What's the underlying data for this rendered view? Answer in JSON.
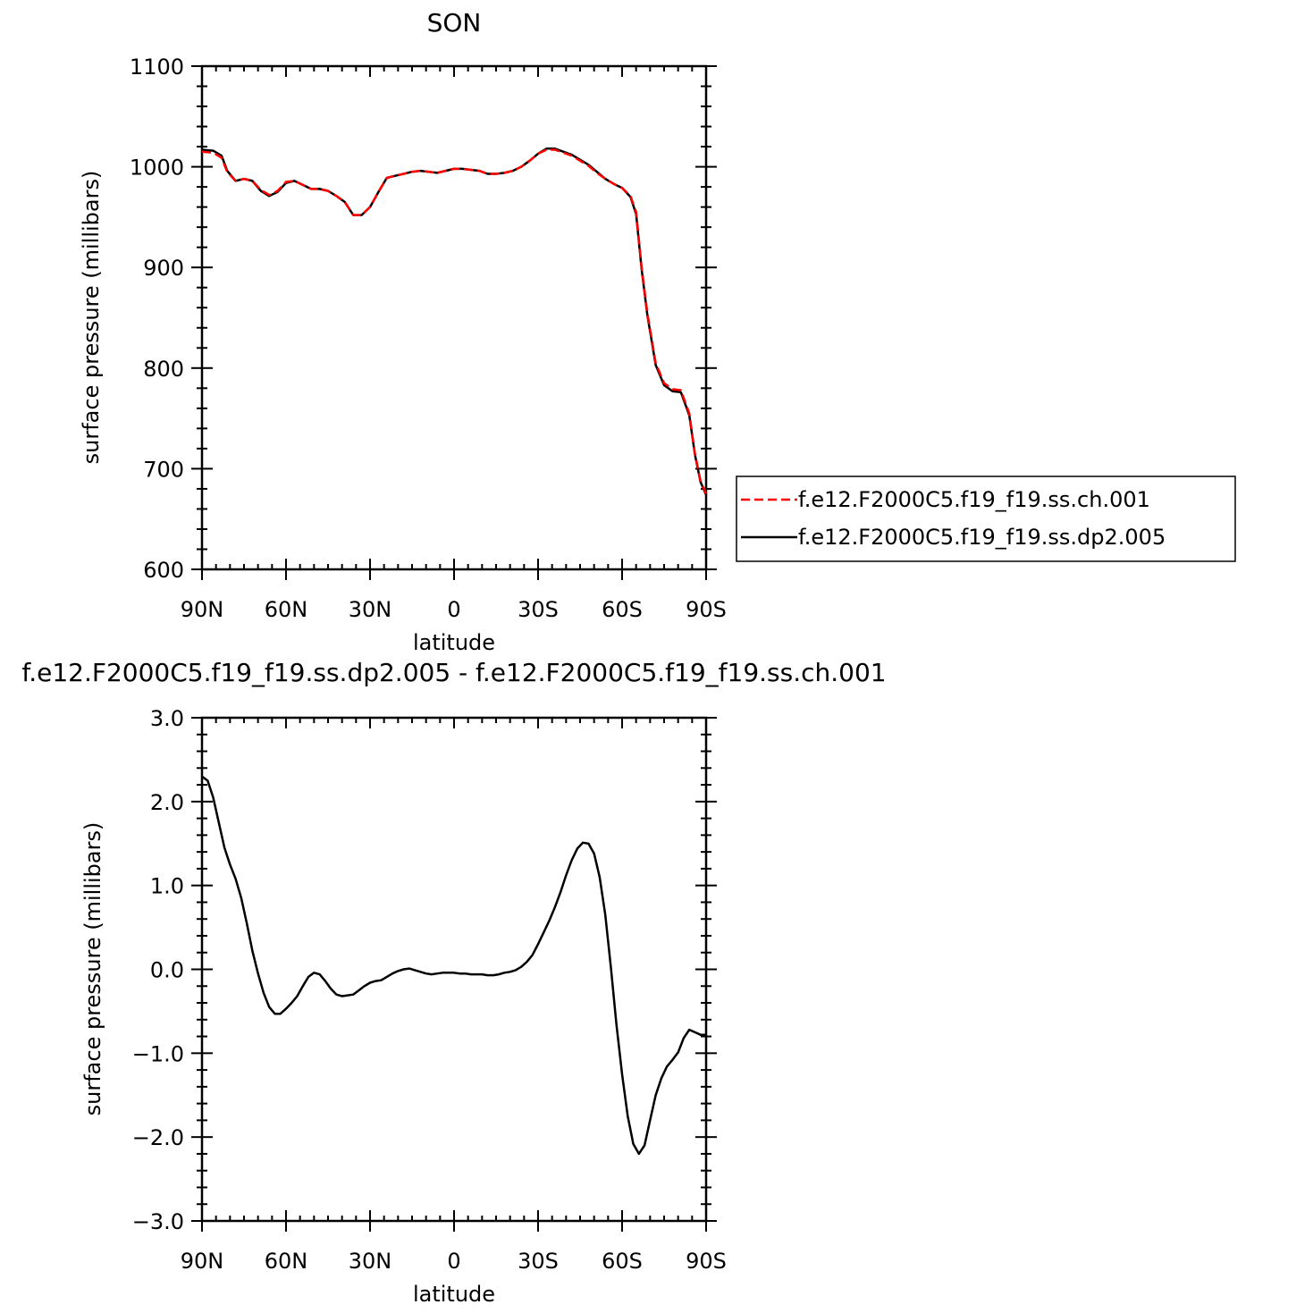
{
  "chart_data": [
    {
      "type": "line",
      "title": "SON",
      "xlabel": "latitude",
      "ylabel": "surface pressure (millibars)",
      "xlim": [
        -90,
        90
      ],
      "ylim": [
        600,
        1100
      ],
      "x_direction": "north-to-south",
      "xtick_labels": [
        "90N",
        "60N",
        "30N",
        "0",
        "30S",
        "60S",
        "90S"
      ],
      "ytick_labels": [
        "600",
        "700",
        "800",
        "900",
        "1000",
        "1100"
      ],
      "legend": {
        "placement": "right"
      },
      "series": [
        {
          "name": "f.e12.F2000C5.f19_f19.ss.ch.001",
          "color": "#ff0000",
          "dash": "dashed",
          "x": [
            90,
            86,
            83,
            81,
            78,
            75,
            72,
            69,
            66,
            63,
            60,
            57,
            54,
            51,
            48,
            45,
            42,
            39,
            36,
            33,
            30,
            27,
            24,
            21,
            18,
            15,
            12,
            9,
            6,
            3,
            0,
            -3,
            -6,
            -9,
            -12,
            -15,
            -18,
            -21,
            -24,
            -27,
            -30,
            -33,
            -36,
            -39,
            -42,
            -45,
            -48,
            -51,
            -54,
            -57,
            -60,
            -63,
            -65,
            -67,
            -69,
            -72,
            -75,
            -78,
            -81,
            -84,
            -86,
            -88,
            -90
          ],
          "y": [
            1015,
            1014,
            1009,
            995,
            986,
            988,
            986,
            977,
            972,
            976,
            985,
            986,
            982,
            978,
            978,
            976,
            971,
            965,
            952,
            952,
            960,
            975,
            989,
            991,
            993,
            995,
            996,
            995,
            994,
            996,
            998,
            998,
            997,
            996,
            993,
            993,
            994,
            996,
            1000,
            1006,
            1013,
            1017,
            1017,
            1014,
            1011,
            1006,
            1001,
            994,
            988,
            983,
            979,
            971,
            955,
            900,
            855,
            805,
            785,
            779,
            778,
            755,
            715,
            688,
            675
          ]
        },
        {
          "name": "f.e12.F2000C5.f19_f19.ss.dp2.005",
          "color": "#000000",
          "dash": "solid",
          "x": [
            90,
            86,
            83,
            81,
            78,
            75,
            72,
            69,
            66,
            63,
            60,
            57,
            54,
            51,
            48,
            45,
            42,
            39,
            36,
            33,
            30,
            27,
            24,
            21,
            18,
            15,
            12,
            9,
            6,
            3,
            0,
            -3,
            -6,
            -9,
            -12,
            -15,
            -18,
            -21,
            -24,
            -27,
            -30,
            -33,
            -36,
            -39,
            -42,
            -45,
            -48,
            -51,
            -54,
            -57,
            -60,
            -63,
            -65,
            -67,
            -69,
            -72,
            -75,
            -78,
            -81,
            -84,
            -86,
            -88,
            -90
          ],
          "y": [
            1017,
            1016,
            1011,
            996,
            986,
            988,
            986,
            976,
            971,
            975,
            984,
            986,
            982,
            978,
            978,
            976,
            971,
            965,
            952,
            952,
            960,
            975,
            989,
            991,
            993,
            995,
            996,
            995,
            994,
            996,
            998,
            998,
            997,
            996,
            993,
            993,
            994,
            996,
            1000,
            1006,
            1013,
            1018,
            1018,
            1015,
            1012,
            1007,
            1002,
            995,
            988,
            983,
            979,
            970,
            953,
            898,
            853,
            803,
            783,
            777,
            776,
            753,
            714,
            687,
            674
          ]
        }
      ]
    },
    {
      "type": "line",
      "title": "f.e12.F2000C5.f19_f19.ss.dp2.005 - f.e12.F2000C5.f19_f19.ss.ch.001",
      "xlabel": "latitude",
      "ylabel": "surface pressure (millibars)",
      "xlim": [
        -90,
        90
      ],
      "ylim": [
        -3.0,
        3.0
      ],
      "x_direction": "north-to-south",
      "xtick_labels": [
        "90N",
        "60N",
        "30N",
        "0",
        "30S",
        "60S",
        "90S"
      ],
      "ytick_labels": [
        "−3.0",
        "−2.0",
        "−1.0",
        "0.0",
        "1.0",
        "2.0",
        "3.0"
      ],
      "series": [
        {
          "color": "#000000",
          "dash": "solid",
          "x": [
            90,
            88,
            86,
            84,
            82,
            80,
            78,
            76,
            74,
            72,
            70,
            68,
            66,
            64,
            62,
            60,
            58,
            56,
            54,
            52,
            50,
            48,
            46,
            44,
            42,
            40,
            38,
            36,
            34,
            32,
            30,
            28,
            26,
            24,
            22,
            20,
            18,
            16,
            14,
            12,
            10,
            8,
            6,
            4,
            2,
            0,
            -2,
            -4,
            -6,
            -8,
            -10,
            -12,
            -14,
            -16,
            -18,
            -20,
            -22,
            -24,
            -26,
            -28,
            -30,
            -32,
            -34,
            -36,
            -38,
            -40,
            -42,
            -44,
            -46,
            -48,
            -50,
            -52,
            -54,
            -56,
            -58,
            -60,
            -62,
            -64,
            -66,
            -68,
            -70,
            -72,
            -74,
            -76,
            -78,
            -80,
            -82,
            -84,
            -86,
            -88,
            -90
          ],
          "y": [
            2.3,
            2.25,
            2.05,
            1.75,
            1.45,
            1.25,
            1.08,
            0.85,
            0.55,
            0.22,
            -0.05,
            -0.28,
            -0.45,
            -0.53,
            -0.53,
            -0.47,
            -0.4,
            -0.32,
            -0.2,
            -0.09,
            -0.04,
            -0.06,
            -0.14,
            -0.23,
            -0.3,
            -0.32,
            -0.31,
            -0.3,
            -0.25,
            -0.2,
            -0.16,
            -0.14,
            -0.13,
            -0.09,
            -0.05,
            -0.02,
            0.0,
            0.01,
            -0.01,
            -0.03,
            -0.05,
            -0.06,
            -0.05,
            -0.04,
            -0.04,
            -0.04,
            -0.05,
            -0.05,
            -0.06,
            -0.06,
            -0.06,
            -0.07,
            -0.07,
            -0.06,
            -0.04,
            -0.03,
            -0.01,
            0.03,
            0.09,
            0.17,
            0.3,
            0.44,
            0.58,
            0.74,
            0.92,
            1.12,
            1.3,
            1.44,
            1.51,
            1.5,
            1.38,
            1.1,
            0.65,
            0.02,
            -0.66,
            -1.25,
            -1.75,
            -2.08,
            -2.2,
            -2.1,
            -1.8,
            -1.5,
            -1.3,
            -1.16,
            -1.08,
            -0.99,
            -0.82,
            -0.72,
            -0.75,
            -0.78,
            -0.78
          ]
        }
      ]
    }
  ]
}
